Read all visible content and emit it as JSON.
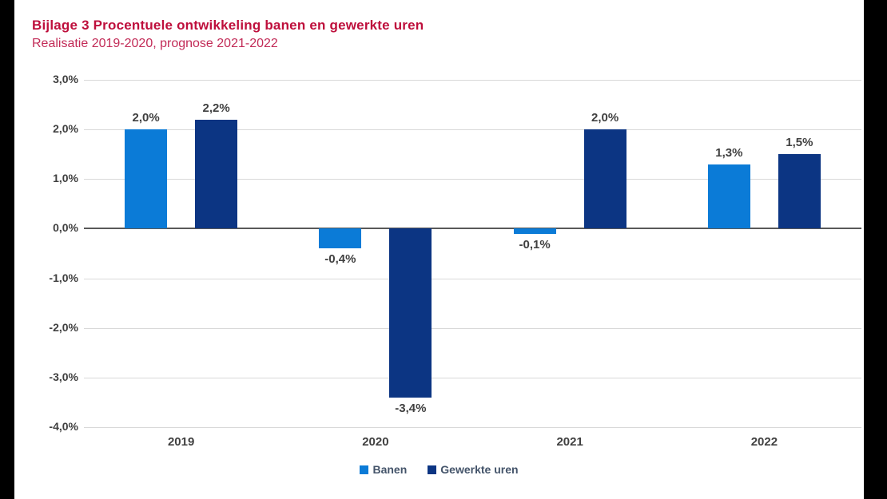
{
  "frame": {
    "background_color": "#ffffff",
    "edge_bar_color": "#000000"
  },
  "header": {
    "title": "Bijlage 3 Procentuele ontwikkeling banen en gewerkte uren",
    "subtitle": "Realisatie 2019-2020, prognose 2021-2022",
    "title_color": "#be0f3c",
    "subtitle_color": "#c22b57"
  },
  "chart_data": {
    "type": "bar",
    "title": "Bijlage 3 Procentuele ontwikkeling banen en gewerkte uren",
    "subtitle": "Realisatie 2019-2020, prognose 2021-2022",
    "categories": [
      "2019",
      "2020",
      "2021",
      "2022"
    ],
    "series": [
      {
        "name": "Banen",
        "color": "#0b7bd7",
        "values": [
          2.0,
          -0.4,
          -0.1,
          1.3
        ],
        "labels": [
          "2,0%",
          "-0,4%",
          "-0,1%",
          "1,3%"
        ]
      },
      {
        "name": "Gewerkte uren",
        "color": "#0c3583",
        "values": [
          2.2,
          -3.4,
          2.0,
          1.5
        ],
        "labels": [
          "2,2%",
          "-3,4%",
          "2,0%",
          "1,5%"
        ]
      }
    ],
    "ylim": [
      -4,
      3
    ],
    "ytick_step": 1,
    "yticks": [
      3,
      2,
      1,
      0,
      -1,
      -2,
      -3,
      -4
    ],
    "ytick_labels": [
      "3,0%",
      "2,0%",
      "1,0%",
      "0,0%",
      "-1,0%",
      "-2,0%",
      "-3,0%",
      "-4,0%"
    ],
    "xlabel": "",
    "ylabel": "",
    "grid": true,
    "gridline_color": "#d9d9d9",
    "zero_line_color": "#595959",
    "tick_label_color": "#404040",
    "data_label_color": "#404040",
    "legend_position": "bottom"
  },
  "legend": {
    "items": [
      {
        "label": "Banen",
        "color": "#0b7bd7"
      },
      {
        "label": "Gewerkte uren",
        "color": "#0c3583"
      }
    ],
    "text_color": "#44546a"
  }
}
